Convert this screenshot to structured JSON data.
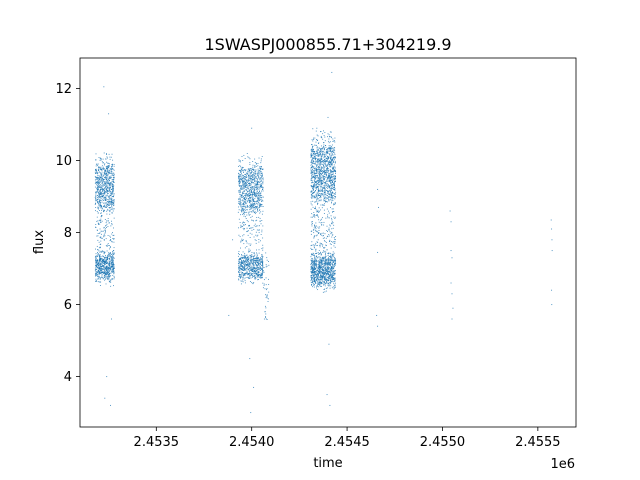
{
  "chart_data": {
    "type": "scatter",
    "title": "1SWASPJ000855.71+304219.9",
    "xlabel": "time",
    "ylabel": "flux",
    "x_offset_label": "1e6",
    "xlim": [
      2453100,
      2455700
    ],
    "ylim": [
      2.6,
      12.85
    ],
    "x_ticks": [
      2453500,
      2454000,
      2454500,
      2455000,
      2455500
    ],
    "x_tick_labels": [
      "2.4535",
      "2.4540",
      "2.4545",
      "2.4550",
      "2.4555"
    ],
    "y_ticks": [
      4,
      6,
      8,
      10,
      12
    ],
    "y_tick_labels": [
      "4",
      "6",
      "8",
      "10",
      "12"
    ],
    "grid": false,
    "marker_color": "#1f77b4",
    "series": [
      {
        "clusters": [
          {
            "x_range": [
              2453180,
              2453280
            ],
            "y_range": [
              6.6,
              10.2
            ],
            "density": 1400
          },
          {
            "x_range": [
              2453930,
              2454060
            ],
            "y_range": [
              6.6,
              10.1
            ],
            "density": 1500
          },
          {
            "x_range": [
              2454060,
              2454090
            ],
            "y_range": [
              5.5,
              7.5
            ],
            "density": 40
          },
          {
            "x_range": [
              2454310,
              2454440
            ],
            "y_range": [
              6.4,
              10.8
            ],
            "density": 2200
          }
        ],
        "outliers": [
          {
            "x": 2453225,
            "y": 12.05
          },
          {
            "x": 2453250,
            "y": 11.3
          },
          {
            "x": 2453230,
            "y": 3.4
          },
          {
            "x": 2453260,
            "y": 3.2
          },
          {
            "x": 2453240,
            "y": 4.0
          },
          {
            "x": 2453265,
            "y": 5.6
          },
          {
            "x": 2453900,
            "y": 7.8
          },
          {
            "x": 2453880,
            "y": 5.7
          },
          {
            "x": 2454000,
            "y": 10.9
          },
          {
            "x": 2453990,
            "y": 4.5
          },
          {
            "x": 2454010,
            "y": 3.7
          },
          {
            "x": 2453995,
            "y": 3.0
          },
          {
            "x": 2454420,
            "y": 12.45
          },
          {
            "x": 2454400,
            "y": 11.2
          },
          {
            "x": 2454405,
            "y": 4.9
          },
          {
            "x": 2454410,
            "y": 3.2
          },
          {
            "x": 2454395,
            "y": 3.5
          },
          {
            "x": 2454660,
            "y": 9.2
          },
          {
            "x": 2454665,
            "y": 8.7
          },
          {
            "x": 2454660,
            "y": 7.45
          },
          {
            "x": 2454655,
            "y": 5.7
          },
          {
            "x": 2454660,
            "y": 5.4
          },
          {
            "x": 2455040,
            "y": 8.6
          },
          {
            "x": 2455045,
            "y": 8.3
          },
          {
            "x": 2455045,
            "y": 7.5
          },
          {
            "x": 2455050,
            "y": 7.3
          },
          {
            "x": 2455045,
            "y": 6.6
          },
          {
            "x": 2455050,
            "y": 6.3
          },
          {
            "x": 2455055,
            "y": 5.9
          },
          {
            "x": 2455050,
            "y": 5.6
          },
          {
            "x": 2455570,
            "y": 8.35
          },
          {
            "x": 2455572,
            "y": 8.1
          },
          {
            "x": 2455574,
            "y": 7.8
          },
          {
            "x": 2455575,
            "y": 7.5
          },
          {
            "x": 2455573,
            "y": 6.0
          },
          {
            "x": 2455572,
            "y": 6.4
          }
        ]
      }
    ]
  }
}
